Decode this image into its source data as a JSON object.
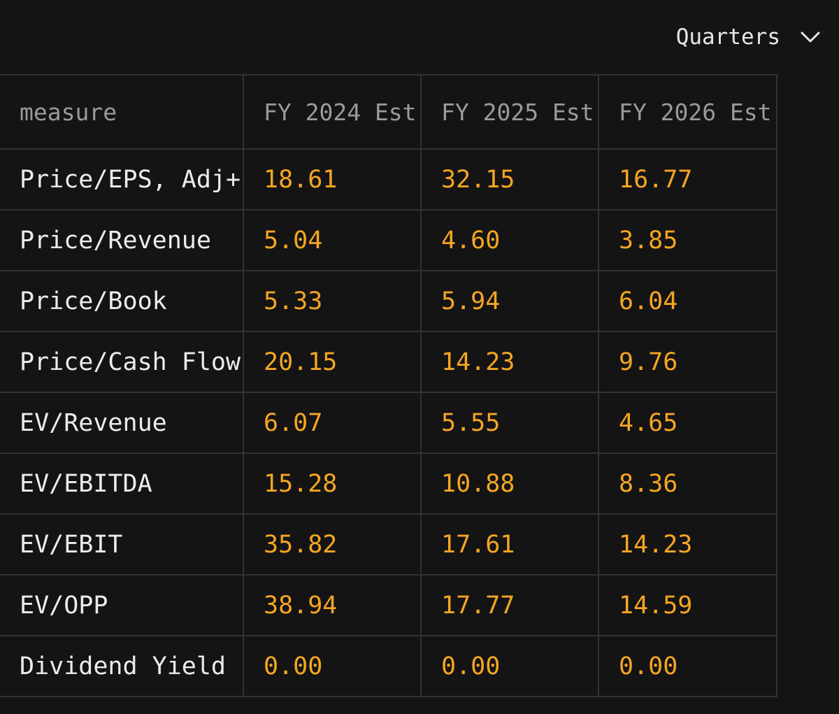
{
  "period_select": {
    "label": "Quarters",
    "icon": "chevron-down-icon"
  },
  "table": {
    "headers": [
      "measure",
      "FY 2024 Est",
      "FY 2025 Est",
      "FY 2026 Est"
    ],
    "rows": [
      {
        "measure": "Price/EPS, Adj+",
        "values": [
          "18.61",
          "32.15",
          "16.77"
        ]
      },
      {
        "measure": "Price/Revenue",
        "values": [
          "5.04",
          "4.60",
          "3.85"
        ]
      },
      {
        "measure": "Price/Book",
        "values": [
          "5.33",
          "5.94",
          "6.04"
        ]
      },
      {
        "measure": "Price/Cash Flow",
        "values": [
          "20.15",
          "14.23",
          "9.76"
        ]
      },
      {
        "measure": "EV/Revenue",
        "values": [
          "6.07",
          "5.55",
          "4.65"
        ]
      },
      {
        "measure": "EV/EBITDA",
        "values": [
          "15.28",
          "10.88",
          "8.36"
        ]
      },
      {
        "measure": "EV/EBIT",
        "values": [
          "35.82",
          "17.61",
          "14.23"
        ]
      },
      {
        "measure": "EV/OPP",
        "values": [
          "38.94",
          "17.77",
          "14.59"
        ]
      },
      {
        "measure": "Dividend Yield",
        "values": [
          "0.00",
          "0.00",
          "0.00"
        ]
      }
    ]
  },
  "colors": {
    "background": "#141414",
    "value": "#f5a623",
    "label": "#ececec",
    "header": "#9a9a9a",
    "grid": "#333333"
  }
}
